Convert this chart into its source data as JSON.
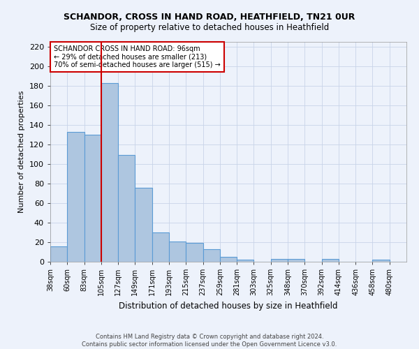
{
  "title": "SCHANDOR, CROSS IN HAND ROAD, HEATHFIELD, TN21 0UR",
  "subtitle": "Size of property relative to detached houses in Heathfield",
  "xlabel": "Distribution of detached houses by size in Heathfield",
  "ylabel": "Number of detached properties",
  "categories": [
    "38sqm",
    "60sqm",
    "83sqm",
    "105sqm",
    "127sqm",
    "149sqm",
    "171sqm",
    "193sqm",
    "215sqm",
    "237sqm",
    "259sqm",
    "281sqm",
    "303sqm",
    "325sqm",
    "348sqm",
    "370sqm",
    "392sqm",
    "414sqm",
    "436sqm",
    "458sqm",
    "480sqm"
  ],
  "values": [
    16,
    133,
    130,
    183,
    109,
    76,
    30,
    21,
    19,
    13,
    5,
    2,
    0,
    3,
    3,
    0,
    3,
    0,
    0,
    2,
    0
  ],
  "bar_color": "#aec6e0",
  "bar_edge_color": "#5b9bd5",
  "background_color": "#edf2fb",
  "grid_color": "#c8d4e8",
  "vline_x_index": 3,
  "vline_color": "#cc0000",
  "bin_width": 1,
  "annotation_text": "SCHANDOR CROSS IN HAND ROAD: 96sqm\n← 29% of detached houses are smaller (213)\n70% of semi-detached houses are larger (515) →",
  "annotation_box_color": "#ffffff",
  "annotation_box_edge": "#cc0000",
  "footer": "Contains HM Land Registry data © Crown copyright and database right 2024.\nContains public sector information licensed under the Open Government Licence v3.0.",
  "ylim": [
    0,
    225
  ],
  "yticks": [
    0,
    20,
    40,
    60,
    80,
    100,
    120,
    140,
    160,
    180,
    200,
    220
  ],
  "title_fontsize": 9,
  "subtitle_fontsize": 8.5
}
